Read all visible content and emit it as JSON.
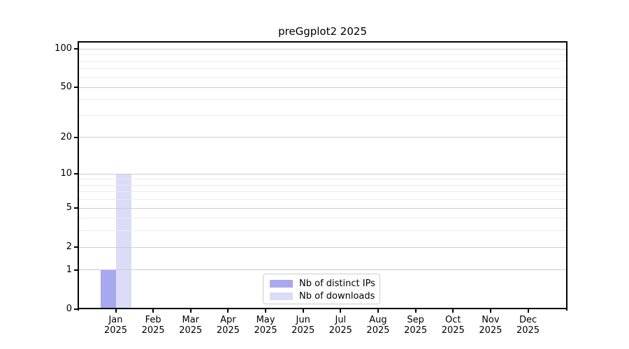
{
  "title": "preGgplot2 2025",
  "colors": {
    "distinct_ips_bar": "#a8a8f0",
    "downloads_bar": "#dcdcf8",
    "major_grid": "#cccccc",
    "minor_grid": "#ebebeb",
    "axis": "#000000",
    "legend_border": "#cccccc",
    "background": "#ffffff"
  },
  "legend": {
    "items": [
      {
        "label": "Nb of distinct IPs",
        "color": "#a8a8f0"
      },
      {
        "label": "Nb of downloads",
        "color": "#dcdcf8"
      }
    ]
  },
  "chart_data": {
    "type": "bar",
    "title": "preGgplot2 2025",
    "categories": [
      "Jan",
      "Feb",
      "Mar",
      "Apr",
      "May",
      "Jun",
      "Jul",
      "Aug",
      "Sep",
      "Oct",
      "Nov",
      "Dec"
    ],
    "tick_year_label": "2025",
    "series": [
      {
        "name": "Nb of distinct IPs",
        "color": "#a8a8f0",
        "values": [
          1,
          0,
          0,
          0,
          0,
          0,
          0,
          0,
          0,
          0,
          0,
          0
        ]
      },
      {
        "name": "Nb of downloads",
        "color": "#dcdcf8",
        "values": [
          10,
          0,
          0,
          0,
          0,
          0,
          0,
          0,
          0,
          0,
          0,
          0
        ]
      }
    ],
    "xlabel": "",
    "ylabel": "",
    "yscale": "log1p",
    "ylim": [
      0,
      112
    ],
    "y_major_ticks": [
      0,
      1,
      2,
      5,
      10,
      20,
      50,
      100
    ],
    "y_minor_ticks": [
      3,
      4,
      6,
      7,
      8,
      9,
      30,
      40,
      60,
      70,
      80,
      90
    ],
    "grid": "horizontal",
    "legend_position": "bottom-center-inside"
  }
}
